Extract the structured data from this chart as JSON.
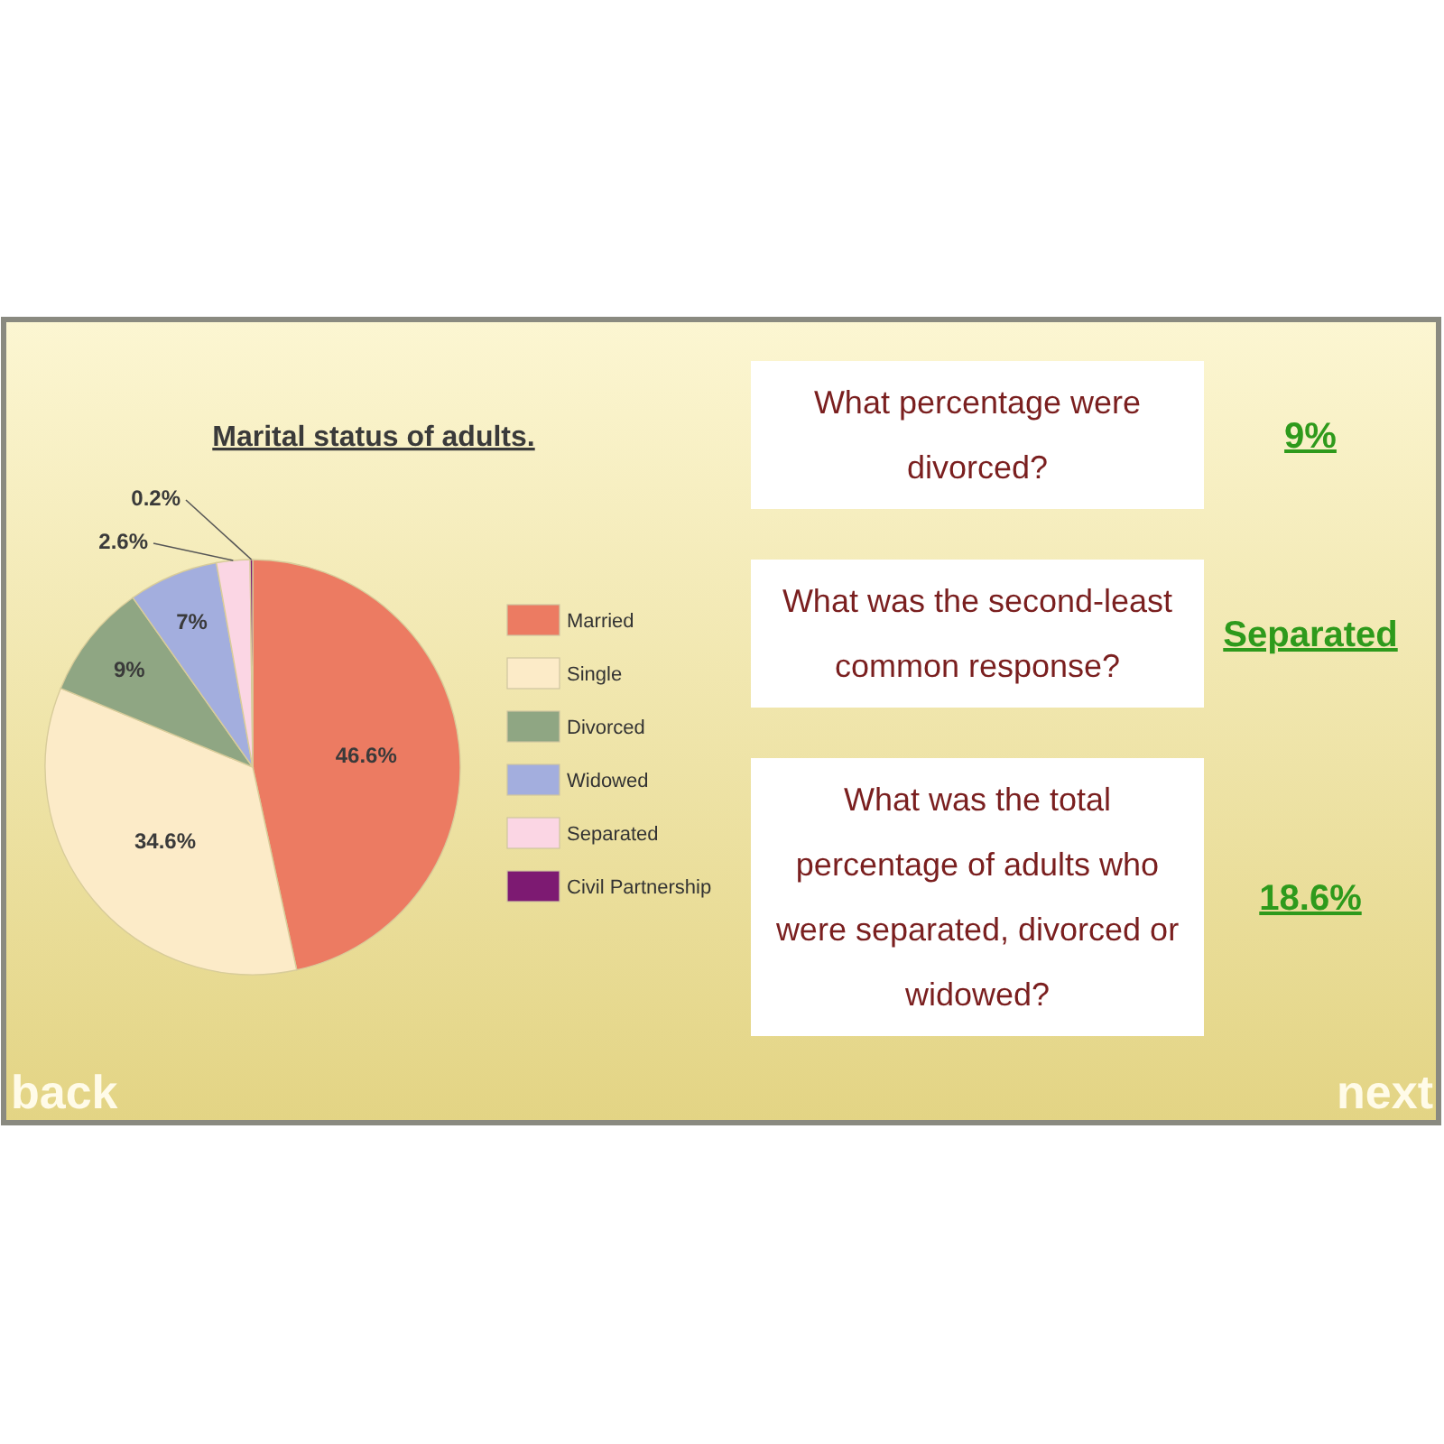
{
  "chart_data": [
    {
      "type": "pie",
      "title": "Marital status of adults.",
      "categories": [
        "Married",
        "Single",
        "Divorced",
        "Widowed",
        "Separated",
        "Civil Partnership"
      ],
      "values": [
        46.6,
        34.6,
        9,
        7,
        2.6,
        0.2
      ],
      "colors": [
        "#ec7b62",
        "#fcebc8",
        "#8fa683",
        "#a3aede",
        "#fbd6e4",
        "#7d1a72"
      ],
      "value_labels": [
        "46.6%",
        "34.6%",
        "9%",
        "7%",
        "2.6%",
        "0.2%"
      ],
      "legend": "right"
    },
    {
      "type": "other",
      "annotations": [
        "What percentage were divorced?",
        "9%",
        "What was the second-least common response?",
        "Separated",
        "What was the total percentage of adults who were separated, divorced or widowed?",
        "18.6%"
      ]
    },
    {
      "type": "other",
      "annotations": [
        "back",
        "next"
      ]
    }
  ]
}
